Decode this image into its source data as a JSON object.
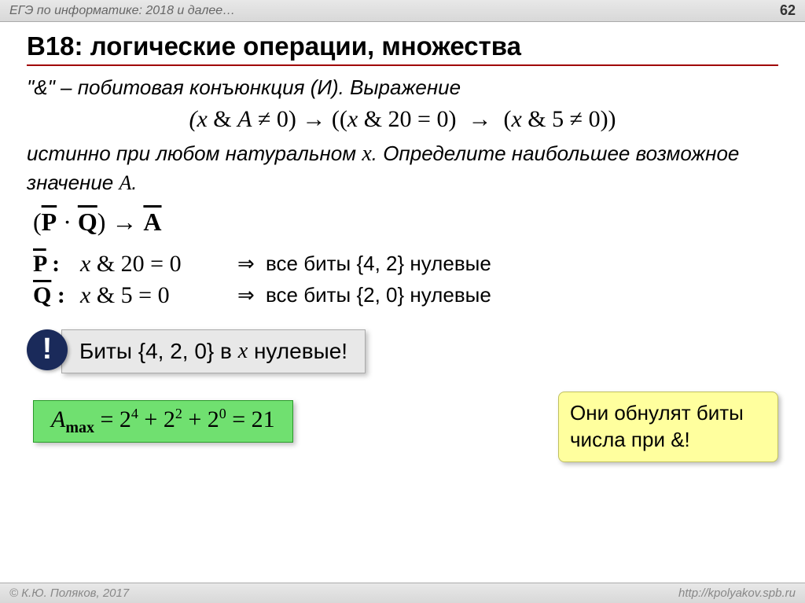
{
  "header": {
    "breadcrumb": "ЕГЭ по информатике: 2018 и далее…",
    "page_number": "62"
  },
  "title": "B18: логические операции, множества",
  "intro_line": "\"&\" – побитовая конъюнкция (И). Выражение",
  "main_formula": "(x & A ≠ 0) → ((x & 20 = 0)  →  (x & 5 ≠ 0))",
  "intro2_a": "истинно при любом натуральном ",
  "intro2_b": ". Определите наибольшее возможное значение ",
  "intro2_c": ".",
  "pq_formula": {
    "lhs_open": "(",
    "p": "P",
    "dot": " · ",
    "q": "Q",
    "lhs_close": ") → ",
    "a": "A"
  },
  "defs": {
    "p": {
      "label": "P :",
      "expr": "x & 20 = 0",
      "arrow": "⇒",
      "text": "все биты {4, 2} нулевые"
    },
    "q": {
      "label": "Q :",
      "expr": "x & 5 = 0",
      "arrow": "⇒",
      "text": "все биты {2, 0} нулевые"
    }
  },
  "gray_callout": {
    "exclam": "!",
    "pre": "Биты {4, 2, 0} в ",
    "post": " нулевые!"
  },
  "yellow_callout": "Они обнулят биты числа при &!",
  "answer": {
    "lhs_var": "A",
    "lhs_sub": "max",
    "eq": " =  ",
    "t1b": "2",
    "t1e": "4",
    "plus1": " + ",
    "t2b": "2",
    "t2e": "2",
    "plus2": " + ",
    "t3b": "2",
    "t3e": "0",
    "rhs": " = 21"
  },
  "footer": {
    "copyright": "© К.Ю. Поляков, 2017",
    "url": "http://kpolyakov.spb.ru"
  },
  "styling": {
    "accent_rule": "#a00000",
    "callout_gray_bg": "#e8e8e8",
    "callout_yellow_bg": "#ffff9e",
    "answer_bg": "#70e070",
    "exclam_bg": "#1a2a5a",
    "title_fontsize": 33,
    "body_fontsize": 26,
    "formula_fontsize": 30
  }
}
